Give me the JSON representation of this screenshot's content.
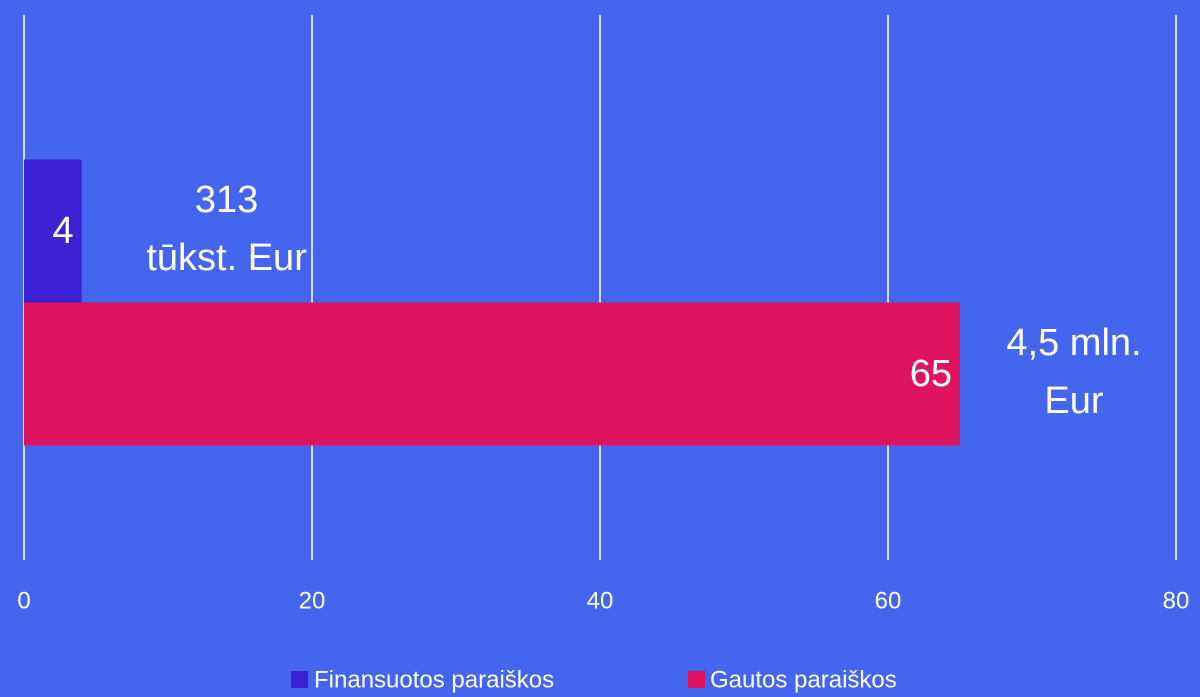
{
  "chart_data": {
    "type": "hbar",
    "categories": [
      null
    ],
    "series": [
      {
        "name": "Finansuotos paraiškos",
        "color": "#3c22d2",
        "values": [
          4
        ]
      },
      {
        "name": "Gautos paraiškos",
        "color": "#df1460",
        "values": [
          65
        ]
      }
    ],
    "annotations": [
      [
        "313",
        "tūkst. Eur"
      ],
      [
        "4,5 mln.",
        "Eur"
      ]
    ],
    "xlim": [
      0,
      80
    ],
    "xticks": [
      0,
      20,
      40,
      60,
      80
    ],
    "grid": true,
    "legend": "bottom"
  }
}
